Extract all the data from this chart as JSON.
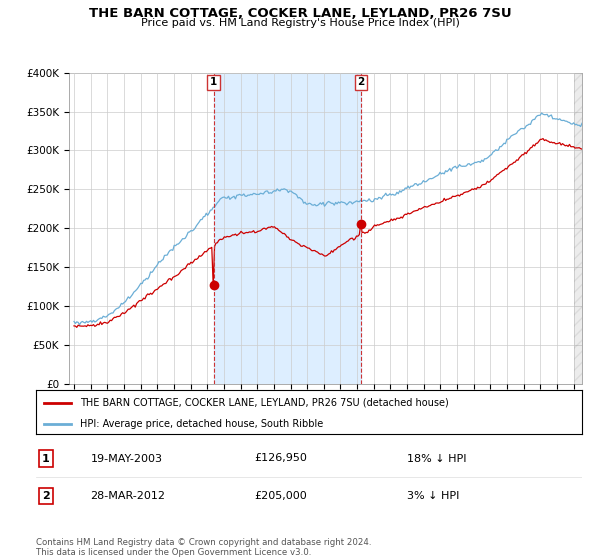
{
  "title": "THE BARN COTTAGE, COCKER LANE, LEYLAND, PR26 7SU",
  "subtitle": "Price paid vs. HM Land Registry's House Price Index (HPI)",
  "ylim": [
    0,
    400000
  ],
  "yticks": [
    0,
    50000,
    100000,
    150000,
    200000,
    250000,
    300000,
    350000,
    400000
  ],
  "hpi_color": "#6baed6",
  "price_color": "#cc0000",
  "sale1_date_label": "19-MAY-2003",
  "sale1_price": 126950,
  "sale1_note": "18% ↓ HPI",
  "sale1_x_year": 2003.38,
  "sale2_date_label": "28-MAR-2012",
  "sale2_price": 205000,
  "sale2_note": "3% ↓ HPI",
  "sale2_x_year": 2012.23,
  "legend_label_price": "THE BARN COTTAGE, COCKER LANE, LEYLAND, PR26 7SU (detached house)",
  "legend_label_hpi": "HPI: Average price, detached house, South Ribble",
  "footnote": "Contains HM Land Registry data © Crown copyright and database right 2024.\nThis data is licensed under the Open Government Licence v3.0.",
  "vline_color": "#cc3333",
  "shade_color": "#ddeeff",
  "grid_color": "#cccccc",
  "xmin": 1995.0,
  "xmax": 2025.5
}
